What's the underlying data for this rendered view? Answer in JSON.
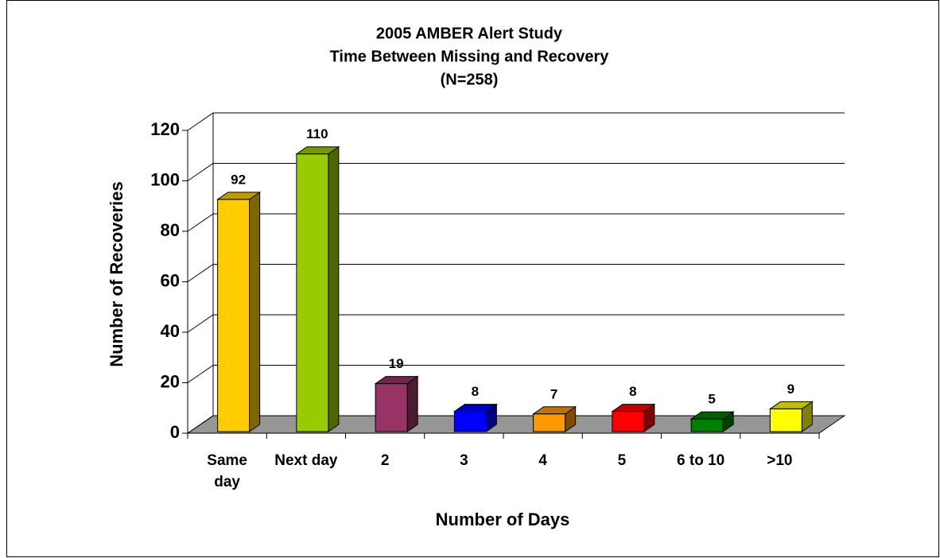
{
  "chart_data": {
    "type": "bar3d",
    "title": [
      "2005 AMBER Alert Study",
      "Time Between Missing and Recovery",
      "(N=258)"
    ],
    "xlabel": "Number of Days",
    "ylabel": "Number of Recoveries",
    "categories": [
      "Same day",
      "Next day",
      "2",
      "3",
      "4",
      "5",
      "6 to 10",
      ">10"
    ],
    "values": [
      92,
      110,
      19,
      8,
      7,
      8,
      5,
      9
    ],
    "colors": [
      "#ffcc00",
      "#99cc00",
      "#993366",
      "#0000ff",
      "#ff9900",
      "#ff0000",
      "#008000",
      "#ffff00"
    ],
    "ylim": [
      0,
      120
    ],
    "yticks": [
      0,
      20,
      40,
      60,
      80,
      100,
      120
    ],
    "grid": true
  }
}
